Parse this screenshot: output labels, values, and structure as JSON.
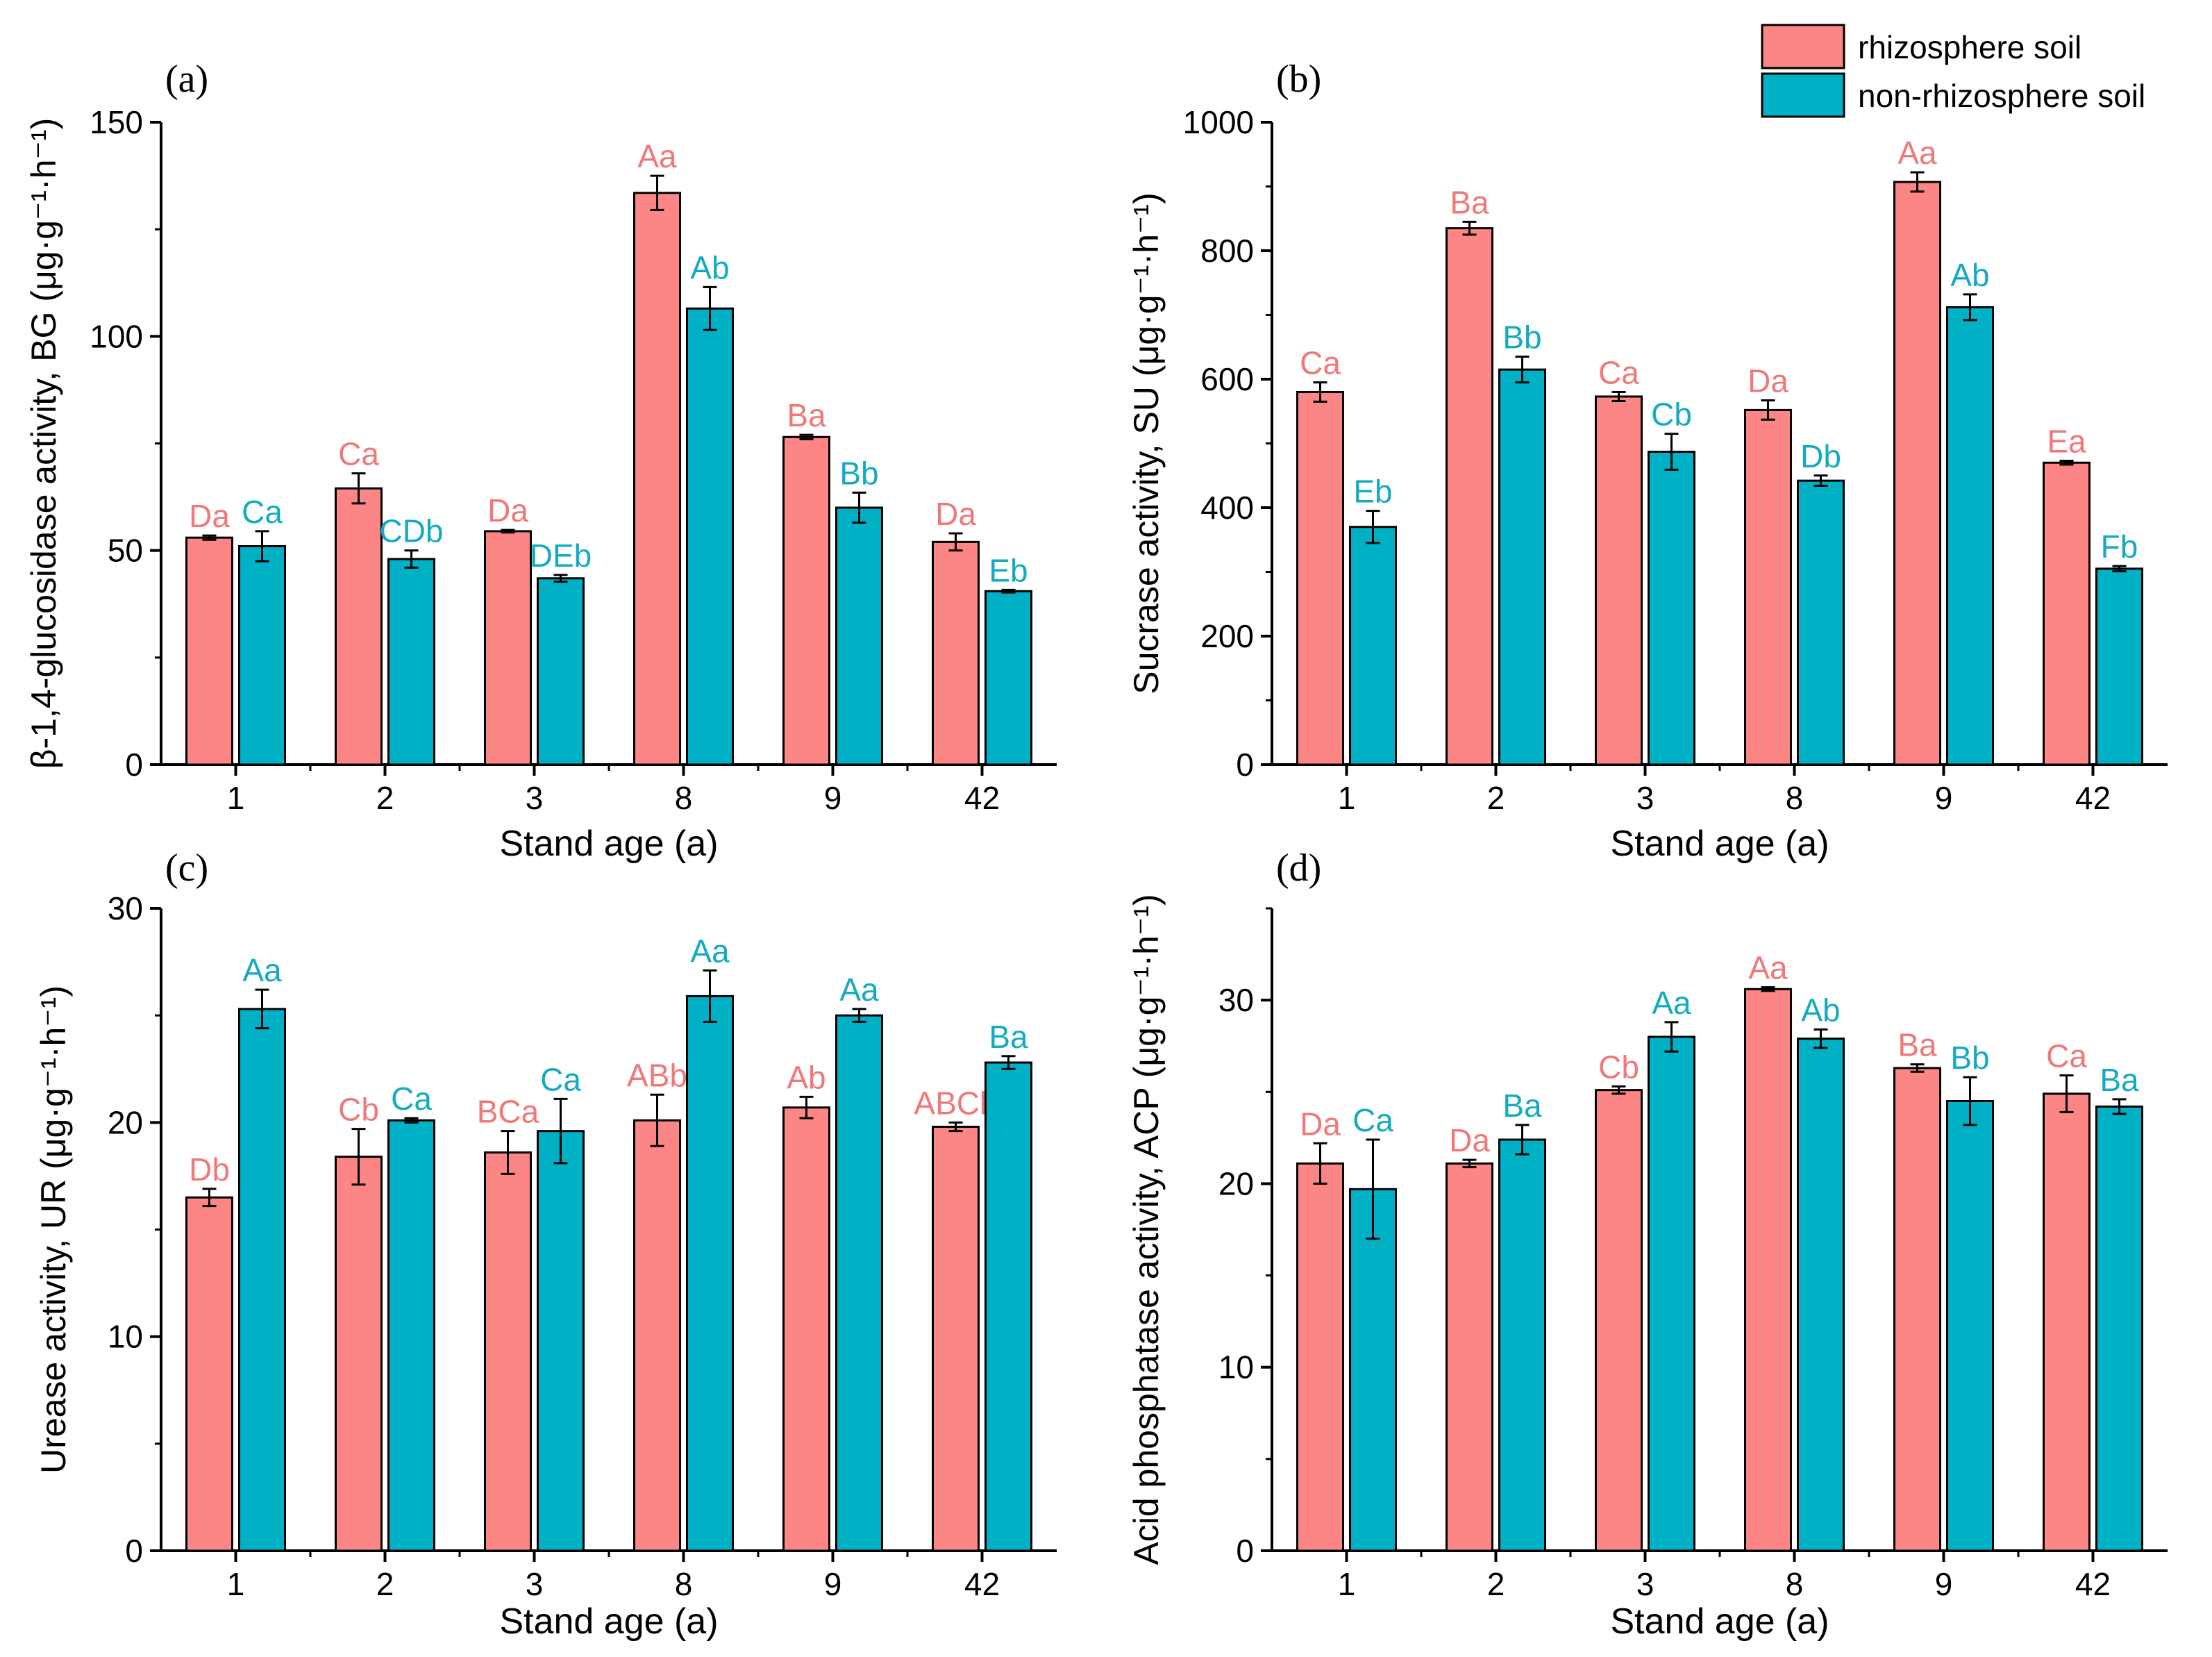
{
  "colors": {
    "rhizosphere": "#fc8585",
    "non_rhizosphere": "#00b0c4",
    "rhizosphere_label": "#f07878",
    "non_rhizosphere_label": "#14abc2",
    "axis": "#000000"
  },
  "legend": {
    "items": [
      {
        "label": "rhizosphere soil",
        "color_key": "rhizosphere"
      },
      {
        "label": "non-rhizosphere soil",
        "color_key": "non_rhizosphere"
      }
    ],
    "placement": "top-right"
  },
  "chart_data": [
    {
      "type": "bar",
      "panel_label": "(a)",
      "ylabel": "β-1,4-glucosidase activity, BG (μg·g⁻¹·h⁻¹)",
      "xlabel": "Stand age (a)",
      "categories": [
        "1",
        "2",
        "3",
        "8",
        "9",
        "42"
      ],
      "ylim": [
        0,
        150
      ],
      "yticks": [
        0,
        50,
        100,
        150
      ],
      "series": [
        {
          "name": "rhizosphere soil",
          "values": [
            53,
            64.5,
            54.5,
            133.5,
            76.5,
            52
          ],
          "errors": [
            0.5,
            3.5,
            0.3,
            4,
            0.5,
            2
          ],
          "labels": [
            "Da",
            "Ca",
            "Da",
            "Aa",
            "Ba",
            "Da"
          ]
        },
        {
          "name": "non-rhizosphere soil",
          "values": [
            51,
            48,
            43.5,
            106.5,
            60,
            40.5
          ],
          "errors": [
            3.5,
            2,
            0.8,
            5,
            3.5,
            0.3
          ],
          "labels": [
            "Ca",
            "CDb",
            "DEb",
            "Ab",
            "Bb",
            "Eb"
          ]
        }
      ]
    },
    {
      "type": "bar",
      "panel_label": "(b)",
      "ylabel": "Sucrase activity, SU (μg·g⁻¹·h⁻¹)",
      "xlabel": "Stand age (a)",
      "categories": [
        "1",
        "2",
        "3",
        "8",
        "9",
        "42"
      ],
      "ylim": [
        0,
        1000
      ],
      "yticks": [
        0,
        200,
        400,
        600,
        800,
        1000
      ],
      "series": [
        {
          "name": "rhizosphere soil",
          "values": [
            580,
            835,
            573,
            552,
            907,
            470
          ],
          "errors": [
            15,
            10,
            7,
            15,
            15,
            3
          ],
          "labels": [
            "Ca",
            "Ba",
            "Ca",
            "Da",
            "Aa",
            "Ea"
          ]
        },
        {
          "name": "non-rhizosphere soil",
          "values": [
            370,
            615,
            487,
            442,
            712,
            305
          ],
          "errors": [
            25,
            20,
            28,
            8,
            20,
            4
          ],
          "labels": [
            "Eb",
            "Bb",
            "Cb",
            "Db",
            "Ab",
            "Fb"
          ]
        }
      ]
    },
    {
      "type": "bar",
      "panel_label": "(c)",
      "ylabel": "Urease activity, UR (μg·g⁻¹·h⁻¹)",
      "xlabel": "Stand age (a)",
      "categories": [
        "1",
        "2",
        "3",
        "8",
        "9",
        "42"
      ],
      "ylim": [
        0,
        30
      ],
      "yticks": [
        0,
        10,
        20,
        30
      ],
      "series": [
        {
          "name": "rhizosphere soil",
          "values": [
            16.5,
            18.4,
            18.6,
            20.1,
            20.7,
            19.8
          ],
          "errors": [
            0.4,
            1.3,
            1.0,
            1.2,
            0.5,
            0.2
          ],
          "labels": [
            "Db",
            "Cb",
            "BCa",
            "ABb",
            "Ab",
            "ABCb"
          ]
        },
        {
          "name": "non-rhizosphere soil",
          "values": [
            25.3,
            20.1,
            19.6,
            25.9,
            25.0,
            22.8
          ],
          "errors": [
            0.9,
            0.1,
            1.5,
            1.2,
            0.3,
            0.3
          ],
          "labels": [
            "Aa",
            "Ca",
            "Ca",
            "Aa",
            "Aa",
            "Ba"
          ]
        }
      ]
    },
    {
      "type": "bar",
      "panel_label": "(d)",
      "ylabel": "Acid phosphatase activity, ACP (μg·g⁻¹·h⁻¹)",
      "xlabel": "Stand age (a)",
      "categories": [
        "1",
        "2",
        "3",
        "8",
        "9",
        "42"
      ],
      "ylim": [
        0,
        35
      ],
      "yticks": [
        0,
        10,
        20,
        30
      ],
      "series": [
        {
          "name": "rhizosphere soil",
          "values": [
            21.1,
            21.1,
            25.1,
            30.6,
            26.3,
            24.9
          ],
          "errors": [
            1.1,
            0.2,
            0.2,
            0.1,
            0.2,
            1.0
          ],
          "labels": [
            "Da",
            "Da",
            "Cb",
            "Aa",
            "Ba",
            "Ca"
          ]
        },
        {
          "name": "non-rhizosphere soil",
          "values": [
            19.7,
            22.4,
            28.0,
            27.9,
            24.5,
            24.2
          ],
          "errors": [
            2.7,
            0.8,
            0.8,
            0.5,
            1.3,
            0.4
          ],
          "labels": [
            "Ca",
            "Ba",
            "Aa",
            "Ab",
            "Bb",
            "Ba"
          ]
        }
      ]
    }
  ]
}
